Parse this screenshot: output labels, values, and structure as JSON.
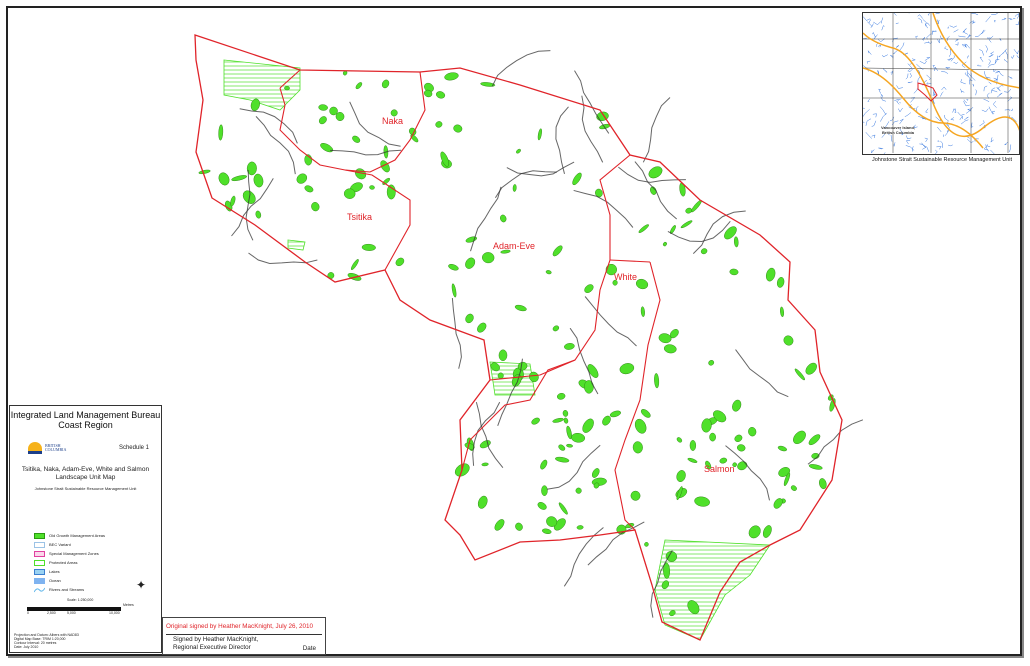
{
  "map": {
    "landscape_units": [
      "Naka",
      "Tsitika",
      "Adam-Eve",
      "White",
      "Salmon"
    ],
    "colors": {
      "boundary": "#e0242a",
      "old_growth": "#4fe02a",
      "protected": "#4fe02a",
      "roads": "#333333"
    }
  },
  "legend": {
    "title_line1": "Integrated Land Management Bureau",
    "title_line2": "Coast Region",
    "logo_text": "BRITISH COLUMBIA",
    "schedule": "Schedule 1",
    "map_title_line1": "Tsitika, Naka, Adam-Eve, White and Salmon",
    "map_title_line2": "Landscape Unit Map",
    "unit_name": "Johnstone Strait Sustainable Resource Management Unit",
    "items": [
      {
        "label": "Old Growth Management Areas",
        "fill": "#4fe02a",
        "stroke": "#2a9a10"
      },
      {
        "label": "BEC Variant",
        "fill": "#ffffff",
        "stroke": "#9cc3e6"
      },
      {
        "label": "Special Management Zones",
        "fill": "#fbd6ea",
        "stroke": "#e040a0"
      },
      {
        "label": "Protected Areas",
        "fill": "#ffffff",
        "stroke": "#4fe02a"
      },
      {
        "label": "Lakes",
        "fill": "#9ad2f2",
        "stroke": "#3b7fd0"
      },
      {
        "label": "Ocean",
        "fill": "#7fb3f0",
        "stroke": "#7fb3f0"
      },
      {
        "label": "Rivers and Streams",
        "fill": "",
        "stroke": "#5fb6ea"
      }
    ],
    "scale": "Scale: 1:250,000",
    "scale_ticks": [
      "0",
      "2,500",
      "5,000",
      "10,000"
    ],
    "scale_unit": "Metres",
    "notes": [
      "Projection and Datum: Albers with NAD83",
      "Digital Map Base: TRIM 1:20,000",
      "Contour Interval: 20 metres",
      "Date: July 2010"
    ]
  },
  "signature": {
    "original": "Original signed by Heather MacKnight, July 26, 2010",
    "name_line1": "Signed by Heather MacKnight,",
    "name_line2": "Regional Executive Director",
    "date_label": "Date"
  },
  "inset": {
    "label_line1": "Vancouver Island,",
    "label_line2": "British Columbia",
    "caption": "Johnstone Strait Sustainable Resource Management Unit"
  }
}
